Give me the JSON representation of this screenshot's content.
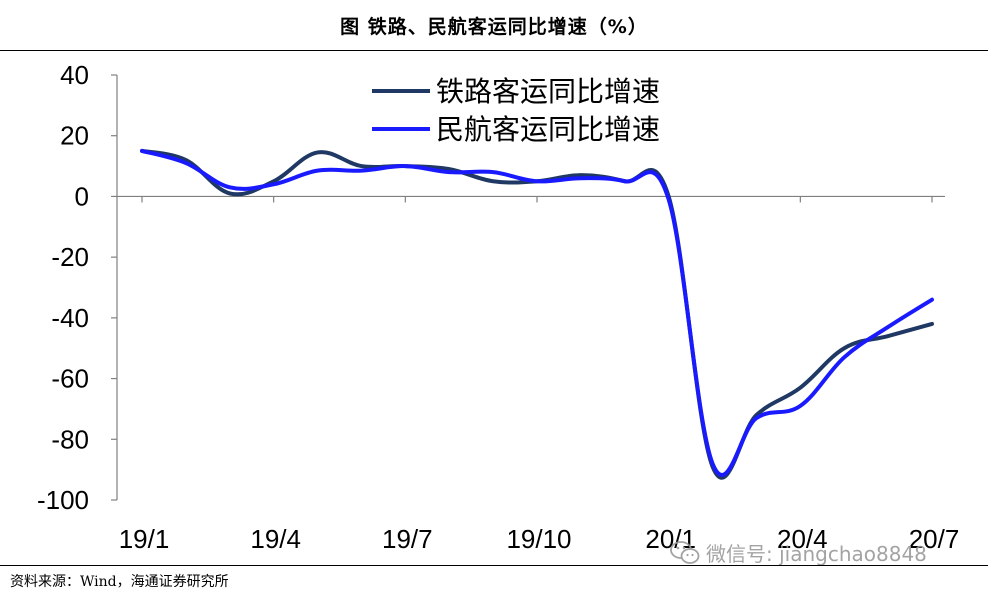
{
  "header": {
    "title": "图  铁路、民航客运同比增速（%）"
  },
  "source": "资料来源：Wind，海通证券研究所",
  "watermark": {
    "text": "微信号: jiangchao8848",
    "icon": "wechat-icon"
  },
  "colors": {
    "rail": "#1f3864",
    "air": "#1a1aff",
    "axis": "#808080"
  },
  "chart_data": {
    "type": "line",
    "x": [
      "19/1",
      "19/2",
      "19/3",
      "19/4",
      "19/5",
      "19/6",
      "19/7",
      "19/8",
      "19/9",
      "19/10",
      "19/11",
      "19/12",
      "20/1",
      "20/2",
      "20/3",
      "20/4",
      "20/5",
      "20/6",
      "20/7"
    ],
    "tick_labels": [
      "19/1",
      "19/4",
      "19/7",
      "19/10",
      "20/1",
      "20/4",
      "20/7"
    ],
    "y_ticks": [
      "40",
      "20",
      "0",
      "-20",
      "-40",
      "-60",
      "-80",
      "-100"
    ],
    "ylim": [
      -100,
      40
    ],
    "legend_position": "top-center",
    "series": [
      {
        "name": "铁路客运同比增速",
        "color_key": "rail",
        "values": [
          15,
          12,
          1,
          5,
          14.5,
          10,
          10,
          9,
          5,
          5,
          7,
          5,
          0,
          -89,
          -72,
          -63,
          -50,
          -46,
          -42
        ]
      },
      {
        "name": "民航客运同比增速",
        "color_key": "air",
        "values": [
          15,
          11,
          3,
          4,
          8.5,
          8.5,
          10,
          8,
          8,
          5,
          6,
          5,
          -1,
          -88,
          -73,
          -69,
          -53,
          -43,
          -34
        ]
      }
    ]
  }
}
